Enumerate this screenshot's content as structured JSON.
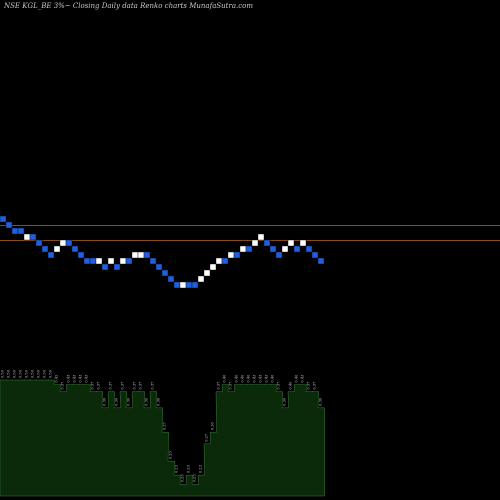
{
  "title": "NSE KGL_BE 3%~  Closing Daily data Renko  charts MunafaSutra.com",
  "colors": {
    "background": "#000000",
    "up_brick": "#ffffff",
    "down_brick": "#1f5fe0",
    "reference_line": "#b5651d",
    "volume_fill": "#0a2a0a",
    "volume_edge": "#3a7a3a",
    "text": "#c8c8c8"
  },
  "chart_data": {
    "type": "renko",
    "title": "NSE KGL_BE 3%~  Closing Daily data Renko  charts MunafaSutra.com",
    "reference_levels": [
      0.405,
      0.355
    ],
    "bricks": {
      "direction": [
        "down",
        "down",
        "down",
        "down",
        "up",
        "down",
        "down",
        "down",
        "down",
        "up",
        "up",
        "down",
        "down",
        "down",
        "down",
        "down",
        "up",
        "down",
        "up",
        "down",
        "up",
        "down",
        "up",
        "up",
        "down",
        "down",
        "down",
        "down",
        "down",
        "down",
        "up",
        "down",
        "down",
        "up",
        "up",
        "up",
        "up",
        "down",
        "up",
        "down",
        "up",
        "down",
        "up",
        "up",
        "down",
        "down",
        "down",
        "up",
        "up",
        "down",
        "up",
        "down",
        "down",
        "down"
      ],
      "level": [
        0.425,
        0.405,
        0.385,
        0.385,
        0.365,
        0.365,
        0.345,
        0.325,
        0.305,
        0.325,
        0.345,
        0.345,
        0.325,
        0.305,
        0.285,
        0.285,
        0.285,
        0.265,
        0.285,
        0.265,
        0.285,
        0.285,
        0.305,
        0.305,
        0.305,
        0.285,
        0.265,
        0.245,
        0.225,
        0.205,
        0.205,
        0.205,
        0.205,
        0.225,
        0.245,
        0.265,
        0.285,
        0.285,
        0.305,
        0.305,
        0.325,
        0.325,
        0.345,
        0.365,
        0.345,
        0.325,
        0.305,
        0.325,
        0.345,
        0.325,
        0.345,
        0.325,
        0.305,
        0.285
      ]
    },
    "volume": {
      "labels": [
        "0.50",
        "0.50",
        "0.50",
        "0.50",
        "0.50",
        "0.50",
        "0.50",
        "0.50",
        "0.50",
        "0.42",
        "0.37",
        "0.43",
        "0.43",
        "0.43",
        "0.43",
        "0.37",
        "0.37",
        "0.30",
        "0.37",
        "0.30",
        "0.37",
        "0.30",
        "0.37",
        "0.37",
        "0.30",
        "0.37",
        "0.30",
        "0.27",
        "0.23",
        "0.23",
        "0.23",
        "0.23",
        "0.23",
        "0.23",
        "0.27",
        "0.30",
        "0.37",
        "0.40",
        "0.37",
        "0.40",
        "0.40",
        "0.40",
        "0.43",
        "0.43",
        "0.43",
        "0.40",
        "0.37",
        "0.30",
        "0.40",
        "0.40",
        "0.43",
        "0.37",
        "0.37",
        "0.30"
      ],
      "relative": [
        1.0,
        1.0,
        1.0,
        1.0,
        1.0,
        1.0,
        1.0,
        1.0,
        1.0,
        0.96,
        0.9,
        0.96,
        0.96,
        0.96,
        0.96,
        0.9,
        0.9,
        0.76,
        0.9,
        0.76,
        0.9,
        0.76,
        0.9,
        0.9,
        0.76,
        0.9,
        0.76,
        0.55,
        0.3,
        0.18,
        0.1,
        0.18,
        0.1,
        0.18,
        0.45,
        0.55,
        0.9,
        0.96,
        0.9,
        0.96,
        0.96,
        0.96,
        0.96,
        0.96,
        0.96,
        0.96,
        0.9,
        0.76,
        0.9,
        0.96,
        0.96,
        0.9,
        0.9,
        0.76
      ]
    }
  }
}
